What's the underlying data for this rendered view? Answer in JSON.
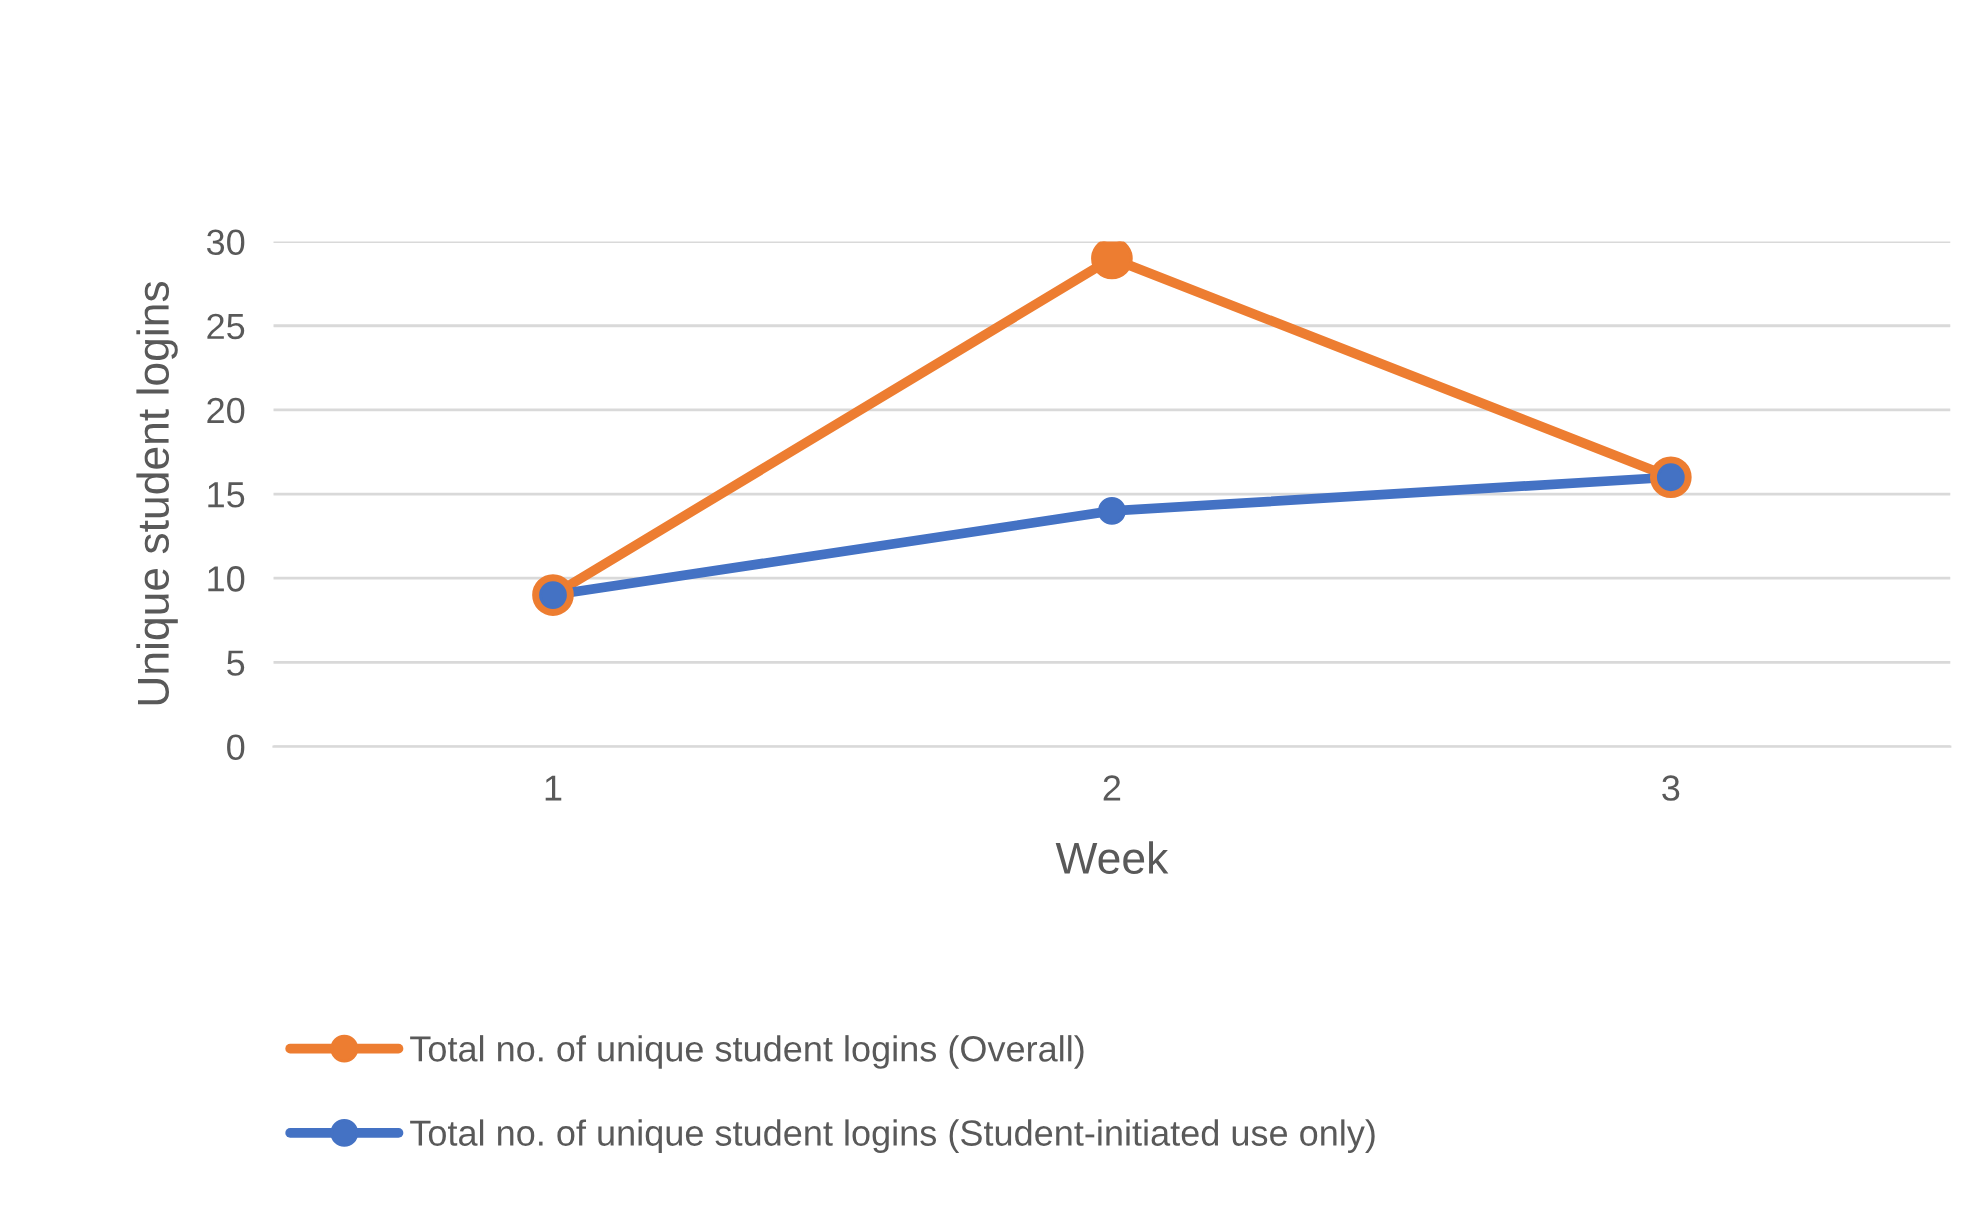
{
  "chart_data": {
    "type": "line",
    "xlabel": "Week",
    "ylabel": "Unique student logins",
    "categories": [
      "1",
      "2",
      "3"
    ],
    "series": [
      {
        "name": "Total no. of unique student logins (Overall)",
        "color": "#ed7d31",
        "values": [
          9,
          29,
          16
        ]
      },
      {
        "name": "Total no. of unique student logins (Student-initiated use only)",
        "color": "#4472c4",
        "values": [
          9,
          14,
          16
        ]
      }
    ],
    "ylim": [
      0,
      30
    ],
    "yticks": [
      0,
      5,
      10,
      15,
      20,
      25,
      30
    ],
    "grid": "y",
    "legend": "bottom",
    "marker": "circle",
    "line_style": "solid"
  }
}
